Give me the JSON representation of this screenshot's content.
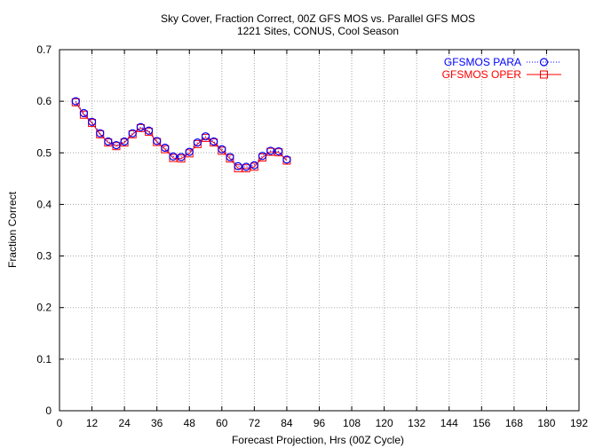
{
  "chart_data": {
    "type": "line",
    "title": "Sky Cover, Fraction Correct, 00Z GFS MOS vs. Parallel GFS MOS",
    "subtitle": "1221 Sites, CONUS, Cool Season",
    "xlabel": "Forecast Projection, Hrs (00Z Cycle)",
    "ylabel": "Fraction Correct",
    "xlim": [
      0,
      192
    ],
    "ylim": [
      0,
      0.7
    ],
    "xticks": [
      0,
      12,
      24,
      36,
      48,
      60,
      72,
      84,
      96,
      108,
      120,
      132,
      144,
      156,
      168,
      180,
      192
    ],
    "yticks": [
      0,
      0.1,
      0.2,
      0.3,
      0.4,
      0.5,
      0.6,
      0.7
    ],
    "grid": true,
    "legend_position": "top-right",
    "x": [
      6,
      9,
      12,
      15,
      18,
      21,
      24,
      27,
      30,
      33,
      36,
      39,
      42,
      45,
      48,
      51,
      54,
      57,
      60,
      63,
      66,
      69,
      72,
      75,
      78,
      81,
      84
    ],
    "series": [
      {
        "name": "GFSMOS PARA",
        "color": "#0000ff",
        "marker": "circle",
        "line": "dotted",
        "values": [
          0.6,
          0.577,
          0.56,
          0.538,
          0.522,
          0.515,
          0.522,
          0.538,
          0.55,
          0.543,
          0.523,
          0.51,
          0.493,
          0.492,
          0.502,
          0.52,
          0.532,
          0.522,
          0.507,
          0.492,
          0.474,
          0.473,
          0.476,
          0.494,
          0.504,
          0.503,
          0.487
        ]
      },
      {
        "name": "GFSMOS OPER",
        "color": "#ff0000",
        "marker": "square",
        "line": "solid",
        "values": [
          0.598,
          0.574,
          0.558,
          0.536,
          0.52,
          0.513,
          0.52,
          0.536,
          0.548,
          0.541,
          0.521,
          0.507,
          0.49,
          0.489,
          0.499,
          0.517,
          0.529,
          0.52,
          0.504,
          0.489,
          0.47,
          0.47,
          0.473,
          0.491,
          0.502,
          0.501,
          0.485
        ]
      }
    ]
  }
}
